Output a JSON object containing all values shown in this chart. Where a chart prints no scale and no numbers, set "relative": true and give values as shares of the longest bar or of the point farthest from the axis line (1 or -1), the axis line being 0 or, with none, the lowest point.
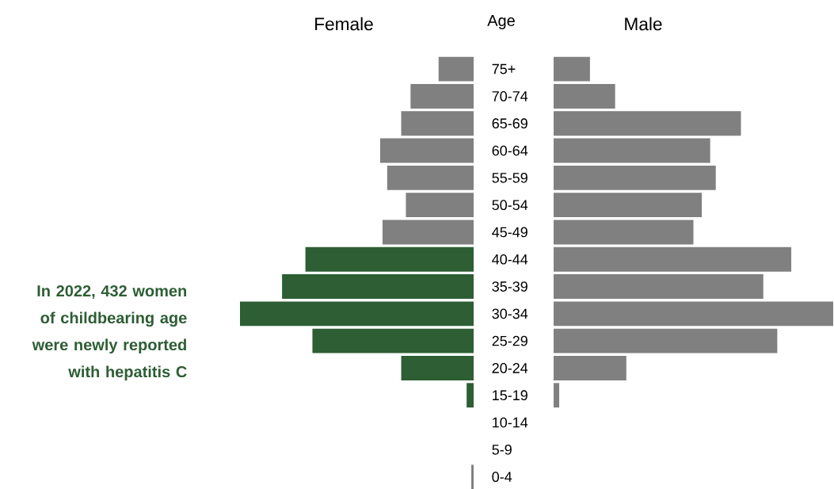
{
  "chart_data": [
    {
      "type": "bar",
      "orientation": "horizontal",
      "relative": true,
      "title": "Female",
      "ylabel": "Age",
      "categories": [
        "75+",
        "70-74",
        "65-69",
        "60-64",
        "55-59",
        "50-54",
        "45-49",
        "40-44",
        "35-39",
        "30-34",
        "25-29",
        "20-24",
        "15-19",
        "10-14",
        "5-9",
        "0-4"
      ],
      "values": [
        -0.15,
        -0.27,
        -0.31,
        -0.4,
        -0.37,
        -0.29,
        -0.39,
        -0.72,
        -0.82,
        -1,
        -0.69,
        -0.31,
        -0.03,
        0,
        0,
        -0.01
      ],
      "colors": [
        "#808080",
        "#808080",
        "#808080",
        "#808080",
        "#808080",
        "#808080",
        "#808080",
        "#2d5e34",
        "#2d5e34",
        "#2d5e34",
        "#2d5e34",
        "#2d5e34",
        "#2d5e34",
        "#808080",
        "#808080",
        "#808080"
      ],
      "annotations": [
        "In 2022, 432 women of childbearing age were newly reported with hepatitis C"
      ]
    },
    {
      "type": "bar",
      "orientation": "horizontal",
      "relative": true,
      "title": "Male",
      "categories": [
        null,
        null,
        null,
        null,
        null,
        null,
        null,
        null,
        null,
        null,
        null,
        null,
        null,
        null,
        null,
        null
      ],
      "values": [
        0.13,
        0.22,
        0.67,
        0.56,
        0.58,
        0.53,
        0.5,
        0.85,
        0.75,
        1,
        0.8,
        0.26,
        0.02,
        0,
        0,
        0
      ],
      "color": "#808080"
    }
  ]
}
